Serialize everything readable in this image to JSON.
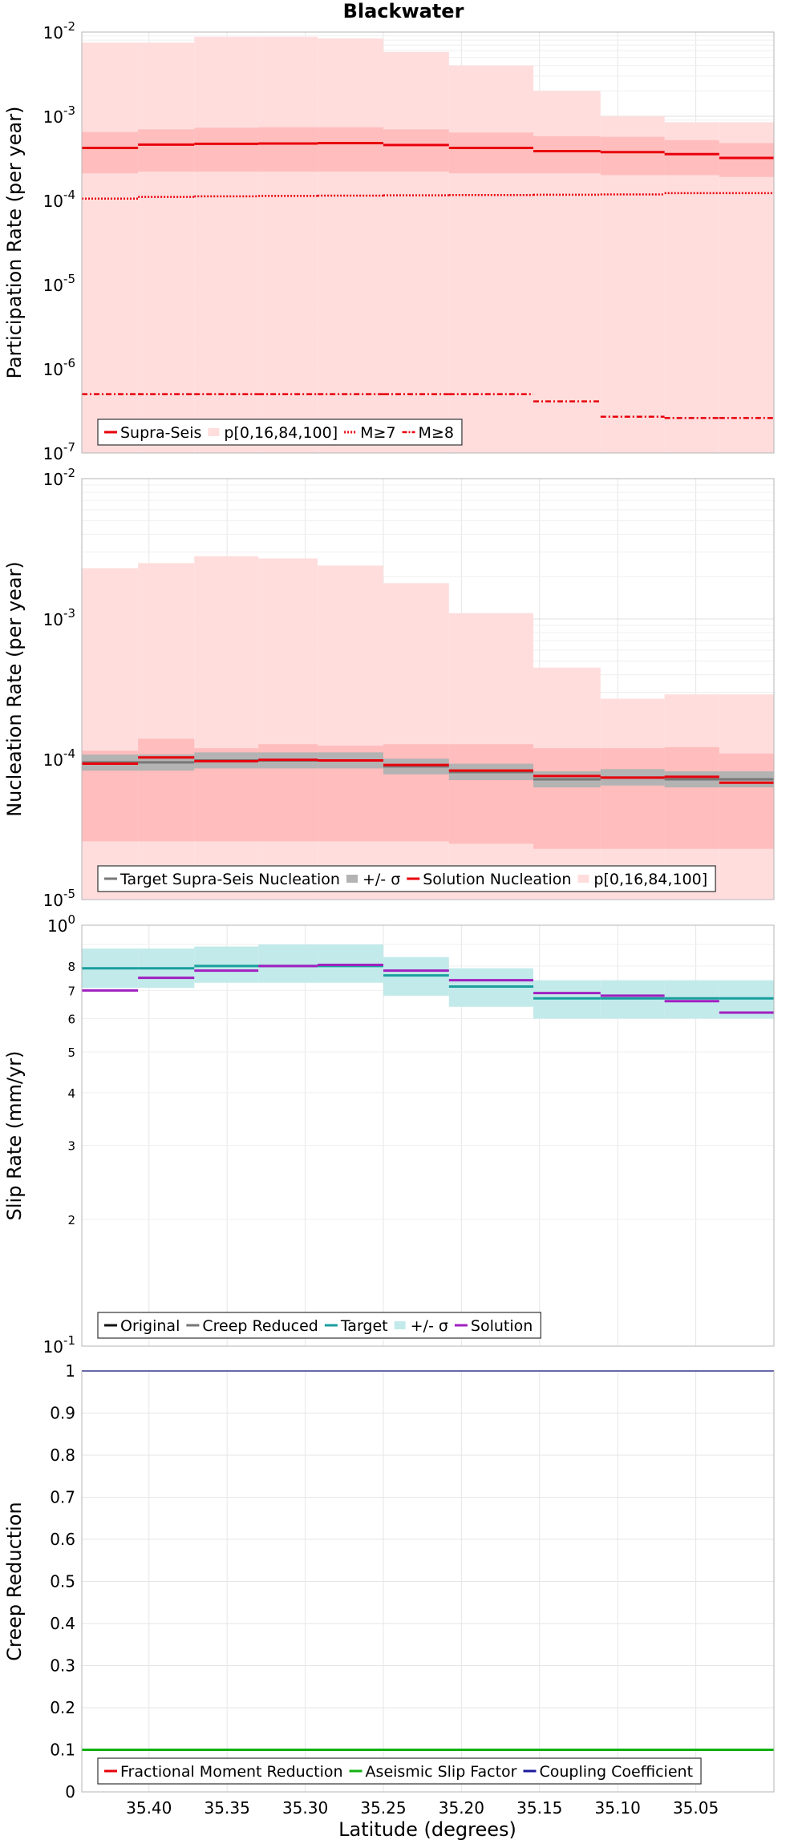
{
  "title": "Blackwater",
  "xlabel": "Latitude (degrees)",
  "xticks": [
    "35.40",
    "35.35",
    "35.30",
    "35.25",
    "35.20",
    "35.15",
    "35.10",
    "35.05"
  ],
  "panels": [
    {
      "ylabel": "Participation Rate (per year)",
      "ytick_labels": [
        {
          "base": "10",
          "exp": "-7"
        },
        {
          "base": "10",
          "exp": "-6"
        },
        {
          "base": "10",
          "exp": "-5"
        },
        {
          "base": "10",
          "exp": "-4"
        },
        {
          "base": "10",
          "exp": "-3"
        },
        {
          "base": "10",
          "exp": "-2"
        }
      ],
      "legend": [
        "Supra-Seis",
        "p[0,16,84,100]",
        "M≥7",
        "M≥8"
      ]
    },
    {
      "ylabel": "Nucleation Rate (per year)",
      "ytick_labels": [
        {
          "base": "10",
          "exp": "-5"
        },
        {
          "base": "10",
          "exp": "-4"
        },
        {
          "base": "10",
          "exp": "-3"
        },
        {
          "base": "10",
          "exp": "-2"
        }
      ],
      "legend": [
        "Target Supra-Seis Nucleation",
        "+/- σ",
        "Solution Nucleation",
        "p[0,16,84,100]"
      ]
    },
    {
      "ylabel": "Slip Rate (mm/yr)",
      "ytick_labels": [
        {
          "base": "10",
          "exp": "-1"
        },
        {
          "base": "10",
          "exp": "0"
        }
      ],
      "minor_tick_labels": [
        "2",
        "3",
        "4",
        "5",
        "6",
        "7",
        "8"
      ],
      "legend": [
        "Original",
        "Creep Reduced",
        "Target",
        "+/- σ",
        "Solution"
      ]
    },
    {
      "ylabel": "Creep Reduction",
      "ytick_labels": [
        "0",
        "0.1",
        "0.2",
        "0.3",
        "0.4",
        "0.5",
        "0.6",
        "0.7",
        "0.8",
        "0.9",
        "1"
      ],
      "legend": [
        "Fractional Moment Reduction",
        "Aseismic Slip Factor",
        "Coupling Coefficient"
      ]
    }
  ],
  "chart_data": [
    {
      "type": "line",
      "ylabel": "Participation Rate (per year)",
      "xlabel": "Latitude (degrees)",
      "yscale": "log",
      "ylim": [
        1e-07,
        0.01
      ],
      "xlim": [
        35.443,
        35.0
      ],
      "x_reversed": true,
      "grid": true,
      "legend_position": "bottom-left",
      "bin_edges": [
        35.443,
        35.407,
        35.371,
        35.33,
        35.292,
        35.25,
        35.208,
        35.154,
        35.111,
        35.07,
        35.035,
        35.0
      ],
      "series": [
        {
          "name": "p[0,16,84,100]",
          "kind": "band_outer",
          "color": "#ffdddd",
          "low": [
            1e-07,
            1e-07,
            1e-07,
            1e-07,
            1e-07,
            1e-07,
            1e-07,
            1e-07,
            1e-07,
            1e-07,
            1e-07
          ],
          "high": [
            0.0075,
            0.0075,
            0.0088,
            0.0088,
            0.0084,
            0.0058,
            0.004,
            0.002,
            0.001,
            0.00085,
            0.00085
          ]
        },
        {
          "name": "p[0,16,84,100]",
          "kind": "band_inner",
          "color": "#ffbdbd",
          "low": [
            0.00021,
            0.00022,
            0.00022,
            0.00022,
            0.00022,
            0.00022,
            0.00021,
            0.00021,
            0.0002,
            0.0002,
            0.00019
          ],
          "high": [
            0.00065,
            0.0007,
            0.00073,
            0.00074,
            0.00074,
            0.0007,
            0.00064,
            0.00058,
            0.00057,
            0.00052,
            0.00048
          ]
        },
        {
          "name": "Supra-Seis",
          "kind": "step",
          "color": "#e8000b",
          "style": "solid",
          "values": [
            0.00042,
            0.00046,
            0.00047,
            0.000475,
            0.00048,
            0.000455,
            0.00042,
            0.000385,
            0.000375,
            0.000355,
            0.00032
          ]
        },
        {
          "name": "M≥7",
          "kind": "step",
          "color": "#e8000b",
          "style": "dotted",
          "values": [
            0.000105,
            0.00011,
            0.000112,
            0.000113,
            0.000114,
            0.000115,
            0.000116,
            0.000117,
            0.000118,
            0.000122,
            0.000122
          ]
        },
        {
          "name": "M≥8",
          "kind": "step",
          "color": "#e8000b",
          "style": "dashdot",
          "values": [
            5e-07,
            5e-07,
            5e-07,
            5e-07,
            5e-07,
            5e-07,
            5e-07,
            4.1e-07,
            2.7e-07,
            2.6e-07,
            2.6e-07
          ]
        }
      ]
    },
    {
      "type": "line",
      "ylabel": "Nucleation Rate (per year)",
      "xlabel": "Latitude (degrees)",
      "yscale": "log",
      "ylim": [
        1e-05,
        0.01
      ],
      "xlim": [
        35.443,
        35.0
      ],
      "x_reversed": true,
      "grid": true,
      "legend_position": "bottom-left",
      "bin_edges": [
        35.443,
        35.407,
        35.371,
        35.33,
        35.292,
        35.25,
        35.208,
        35.154,
        35.111,
        35.07,
        35.035,
        35.0
      ],
      "series": [
        {
          "name": "p[0,16,84,100]",
          "kind": "band_outer",
          "color": "#ffdddd",
          "low": [
            1e-05,
            1e-05,
            1e-05,
            1e-05,
            1e-05,
            1e-05,
            1e-05,
            1e-05,
            1e-05,
            1e-05,
            1e-05
          ],
          "high": [
            0.0023,
            0.0025,
            0.0028,
            0.0027,
            0.0024,
            0.0018,
            0.0011,
            0.00045,
            0.00027,
            0.00029,
            0.00029
          ]
        },
        {
          "name": "p[0,16,84,100]",
          "kind": "band_inner",
          "color": "#ffbdbd",
          "low": [
            2.6e-05,
            2.6e-05,
            2.6e-05,
            2.6e-05,
            2.6e-05,
            2.6e-05,
            2.5e-05,
            2.3e-05,
            2.3e-05,
            2.3e-05,
            2.3e-05
          ],
          "high": [
            0.000115,
            0.00014,
            0.00012,
            0.000128,
            0.000125,
            0.000128,
            0.000128,
            0.00012,
            0.00012,
            0.000122,
            0.00011
          ]
        },
        {
          "name": "+/- σ",
          "kind": "band",
          "color": "#b3b3b3",
          "low": [
            8.3e-05,
            8.3e-05,
            8.6e-05,
            8.6e-05,
            8.6e-05,
            7.8e-05,
            7.1e-05,
            6.3e-05,
            6.5e-05,
            6.3e-05,
            6.3e-05
          ],
          "high": [
            0.000108,
            0.000108,
            0.000112,
            0.000112,
            0.000112,
            0.000101,
            9.3e-05,
            8.2e-05,
            8.5e-05,
            8.2e-05,
            8.2e-05
          ]
        },
        {
          "name": "Target Supra-Seis Nucleation",
          "kind": "step",
          "color": "#777777",
          "style": "solid",
          "values": [
            9.5e-05,
            9.5e-05,
            9.8e-05,
            9.8e-05,
            9.8e-05,
            8.9e-05,
            8.1e-05,
            7.2e-05,
            7.4e-05,
            7.2e-05,
            7.2e-05
          ]
        },
        {
          "name": "Solution Nucleation",
          "kind": "step",
          "color": "#e8000b",
          "style": "solid",
          "values": [
            9.3e-05,
            0.000103,
            9.7e-05,
            9.9e-05,
            9.8e-05,
            9.1e-05,
            8.3e-05,
            7.6e-05,
            7.4e-05,
            7.5e-05,
            6.8e-05
          ]
        }
      ]
    },
    {
      "type": "line",
      "ylabel": "Slip Rate (mm/yr)",
      "xlabel": "Latitude (degrees)",
      "yscale": "log",
      "ylim": [
        1,
        10
      ],
      "xlim": [
        35.443,
        35.0
      ],
      "x_reversed": true,
      "grid": true,
      "legend_position": "bottom-left",
      "bin_edges": [
        35.443,
        35.407,
        35.371,
        35.33,
        35.292,
        35.25,
        35.208,
        35.154,
        35.111,
        35.07,
        35.035,
        35.0
      ],
      "series": [
        {
          "name": "+/- σ",
          "kind": "band",
          "color": "#c2eaea",
          "low": [
            7.1,
            7.1,
            7.3,
            7.3,
            7.3,
            6.8,
            6.4,
            6.0,
            6.0,
            6.0,
            6.0
          ],
          "high": [
            8.8,
            8.8,
            8.9,
            9.0,
            9.0,
            8.4,
            7.9,
            7.4,
            7.4,
            7.4,
            7.4
          ]
        },
        {
          "name": "Target",
          "kind": "step",
          "color": "#1a9e9e",
          "style": "solid",
          "values": [
            7.9,
            7.9,
            8.0,
            8.0,
            8.0,
            7.6,
            7.15,
            6.7,
            6.7,
            6.7,
            6.7
          ]
        },
        {
          "name": "Solution",
          "kind": "step",
          "color": "#a020c0",
          "style": "solid",
          "values": [
            7.0,
            7.5,
            7.8,
            8.0,
            8.05,
            7.8,
            7.4,
            6.9,
            6.8,
            6.6,
            6.2
          ]
        }
      ]
    },
    {
      "type": "line",
      "ylabel": "Creep Reduction",
      "xlabel": "Latitude (degrees)",
      "yscale": "linear",
      "ylim": [
        0,
        1
      ],
      "xlim": [
        35.443,
        35.0
      ],
      "x_reversed": true,
      "grid": true,
      "legend_position": "bottom-left",
      "series": [
        {
          "name": "Aseismic Slip Factor",
          "kind": "hline",
          "color": "#11b011",
          "value": 0.1
        },
        {
          "name": "Coupling Coefficient",
          "kind": "hline",
          "color": "#1a1a9e",
          "value": 1.0
        }
      ]
    }
  ]
}
